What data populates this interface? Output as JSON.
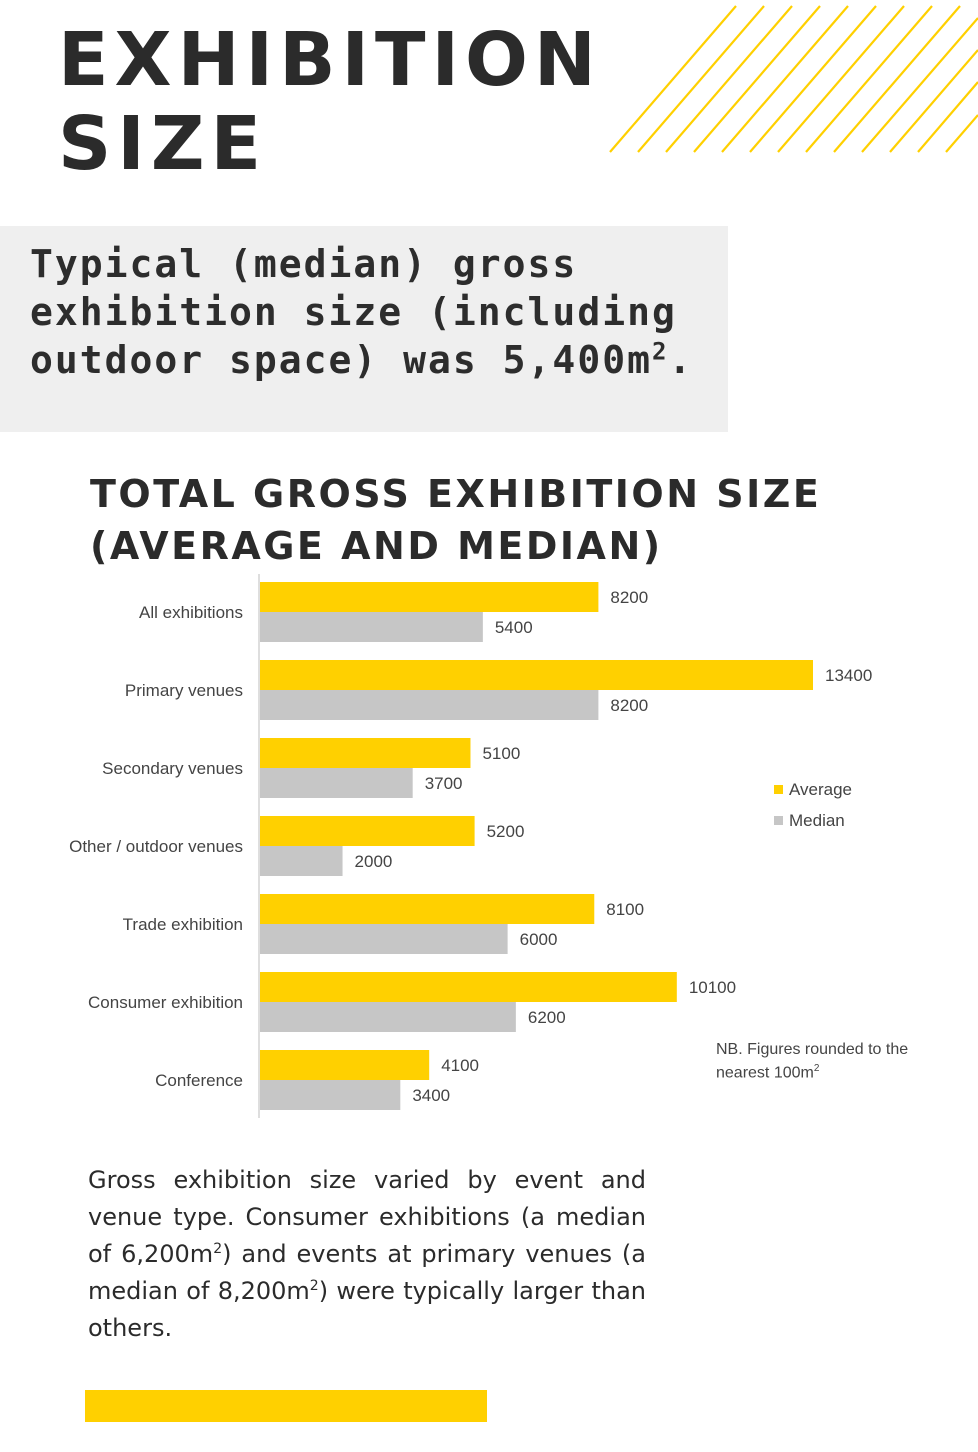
{
  "header": {
    "title_line1": "EXHIBITION",
    "title_line2": "SIZE"
  },
  "summary": {
    "line1": "Typical (median) gross",
    "line2": "exhibition size (including",
    "line3_prefix": "outdoor space) was 5,400m",
    "sup": "2",
    "line3_suffix": "."
  },
  "colors": {
    "accent": "#ffd000",
    "median": "#c6c6c6",
    "text": "#2b2b2b"
  },
  "chart_data": {
    "type": "bar",
    "orientation": "horizontal",
    "title_line1": "TOTAL GROSS EXHIBITION SIZE",
    "title_line2": "(AVERAGE AND MEDIAN)",
    "categories": [
      "All exhibitions",
      "Primary venues",
      "Secondary venues",
      "Other / outdoor venues",
      "Trade exhibition",
      "Consumer exhibition",
      "Conference"
    ],
    "series": [
      {
        "name": "Average",
        "values": [
          8200,
          13400,
          5100,
          5200,
          8100,
          10100,
          4100
        ]
      },
      {
        "name": "Median",
        "values": [
          5400,
          8200,
          3700,
          2000,
          6000,
          6200,
          3400
        ]
      }
    ],
    "xlim": [
      0,
      16000
    ],
    "legend": "right",
    "units": "m²"
  },
  "legend": {
    "average": "Average",
    "median": "Median"
  },
  "note": {
    "line1": "NB. Figures rounded to the",
    "line2_prefix": "nearest 100m",
    "sup": "2"
  },
  "body": {
    "p1": "Gross exhibition size varied by event and venue type. Consumer exhibitions (a median of 6,200m",
    "sup1": "2",
    "p2": ") and events at primary venues (a median of 8,200m",
    "sup2": "2",
    "p3": ") were typically larger than others."
  }
}
